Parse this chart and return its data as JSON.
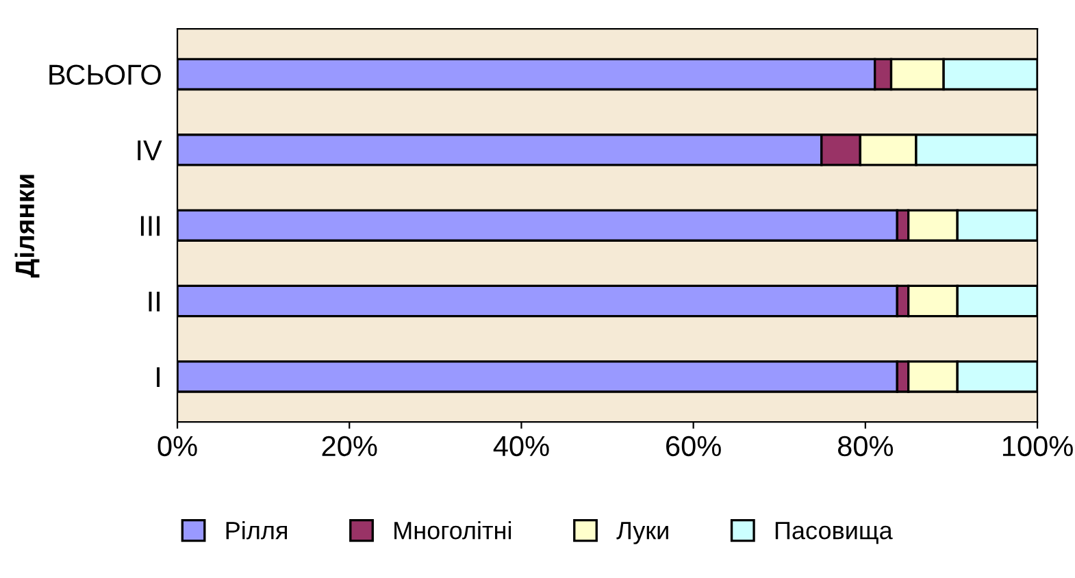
{
  "chart_data": {
    "type": "bar",
    "orientation": "horizontal",
    "stacked": true,
    "ylabel": "Ділянки",
    "categories": [
      "ВСЬОГО",
      "IV",
      "III",
      "II",
      "I"
    ],
    "series": [
      {
        "name": "Рілля",
        "color": "#9999ff",
        "values": [
          81.1,
          74.9,
          83.7,
          83.7,
          83.7
        ]
      },
      {
        "name": "Многолітні",
        "color": "#993366",
        "values": [
          1.9,
          4.5,
          1.3,
          1.3,
          1.3
        ]
      },
      {
        "name": "Луки",
        "color": "#ffffcc",
        "values": [
          6.1,
          6.5,
          5.7,
          5.7,
          5.7
        ]
      },
      {
        "name": "Пасовища",
        "color": "#ccffff",
        "values": [
          10.9,
          14.1,
          9.3,
          9.3,
          9.3
        ]
      }
    ],
    "xlim": [
      0,
      100
    ],
    "xticks": [
      {
        "value": 0,
        "label": "0%"
      },
      {
        "value": 20,
        "label": "20%"
      },
      {
        "value": 40,
        "label": "40%"
      },
      {
        "value": 60,
        "label": "60%"
      },
      {
        "value": 80,
        "label": "80%"
      },
      {
        "value": 100,
        "label": "100%"
      }
    ],
    "grid": false,
    "legend": "bottom"
  }
}
